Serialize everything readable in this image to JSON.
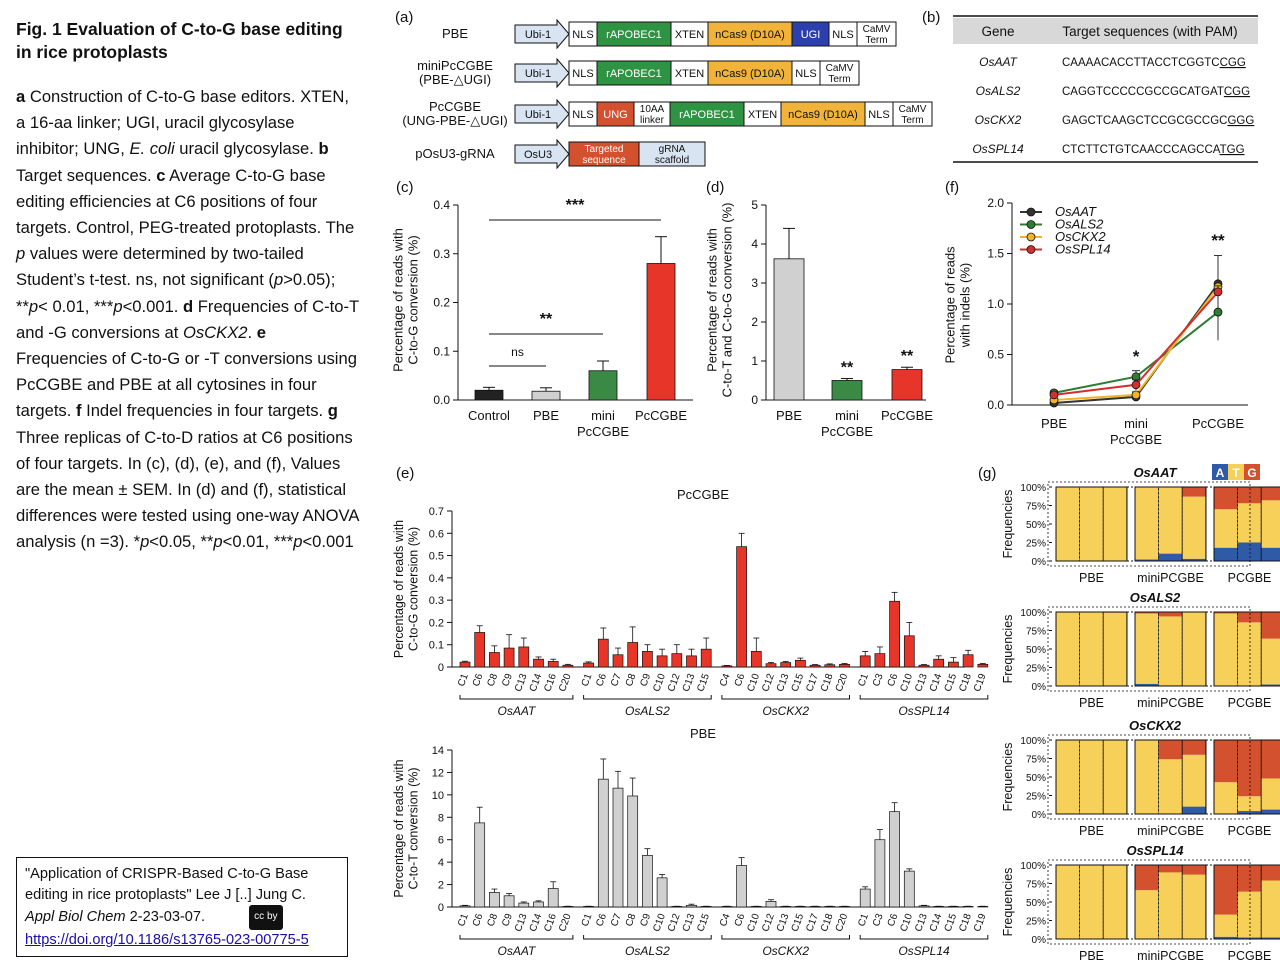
{
  "left_column": {
    "title": "Fig. 1 Evaluation of C-to-G base editing in rice protoplasts",
    "caption_parts": [
      {
        "t": "a",
        "b": true
      },
      {
        "t": " Construction of C-to-G base editors. XTEN, a 16-aa linker; UGI, uracil glycosylase inhibitor; UNG, "
      },
      {
        "t": "E. coli",
        "i": true
      },
      {
        "t": " uracil glycosylase. "
      },
      {
        "t": "b",
        "b": true
      },
      {
        "t": " Target sequences. "
      },
      {
        "t": "c",
        "b": true
      },
      {
        "t": " Average C-to-G base editing efficiencies at C6 positions of four targets. Control, PEG-treated protoplasts. The "
      },
      {
        "t": "p",
        "i": true
      },
      {
        "t": " values were determined by two-tailed Student’s t-test. ns, not significant ("
      },
      {
        "t": "p",
        "i": true
      },
      {
        "t": ">0.05); **"
      },
      {
        "t": "p",
        "i": true
      },
      {
        "t": "< 0.01, ***"
      },
      {
        "t": "p",
        "i": true
      },
      {
        "t": "<0.001. "
      },
      {
        "t": "d",
        "b": true
      },
      {
        "t": " Frequencies of C-to-T and -G conversions at "
      },
      {
        "t": "OsCKX2",
        "i": true
      },
      {
        "t": ". "
      },
      {
        "t": "e",
        "b": true
      },
      {
        "t": " Frequencies of C-to-G or -T conversions using PcCGBE and PBE at all cytosines in four targets. "
      },
      {
        "t": "f",
        "b": true
      },
      {
        "t": " Indel frequencies in four targets. "
      },
      {
        "t": "g",
        "b": true
      },
      {
        "t": " Three replicas of C-to-D ratios at C6 positions of four targets. In (c), (d), (e), and (f), Values are the mean ± SEM. In (d) and (f), statistical differences were tested using one-way ANOVA analysis (n =3). *"
      },
      {
        "t": "p",
        "i": true
      },
      {
        "t": "<0.05, **"
      },
      {
        "t": "p",
        "i": true
      },
      {
        "t": "<0.01, ***"
      },
      {
        "t": "p",
        "i": true
      },
      {
        "t": "<0.001"
      }
    ],
    "citation": {
      "line1": "\"Application of CRISPR-Based C-to-G Base editing in rice protoplasts\" Lee J [..] Jung C.",
      "journal": "Appl Biol Chem",
      "volume": " 2-23-03-07.",
      "link": "https://doi.org/10.1186/s13765-023-00775-5",
      "badge": "cc by"
    }
  },
  "panel_a": {
    "label": "(a)",
    "constructs": [
      {
        "name": [
          "PBE"
        ],
        "parts": [
          [
            "Ubi-1",
            "promoter"
          ],
          [
            "NLS",
            "w"
          ],
          [
            "rAPOBEC1",
            "g"
          ],
          [
            "XTEN",
            "w"
          ],
          [
            "nCas9 (D10A)",
            "o"
          ],
          [
            "UGI",
            "b"
          ],
          [
            "NLS",
            "w"
          ],
          [
            "CaMV|Term",
            "w"
          ]
        ]
      },
      {
        "name": [
          "miniPcCGBE",
          "(PBE-△UGI)"
        ],
        "parts": [
          [
            "Ubi-1",
            "promoter"
          ],
          [
            "NLS",
            "w"
          ],
          [
            "rAPOBEC1",
            "g"
          ],
          [
            "XTEN",
            "w"
          ],
          [
            "nCas9 (D10A)",
            "o"
          ],
          [
            "NLS",
            "w"
          ],
          [
            "CaMV|Term",
            "w"
          ]
        ]
      },
      {
        "name": [
          "PcCGBE",
          "(UNG-PBE-△UGI)"
        ],
        "parts": [
          [
            "Ubi-1",
            "promoter"
          ],
          [
            "NLS",
            "w"
          ],
          [
            "UNG",
            "r"
          ],
          [
            "10AA|linker",
            "w"
          ],
          [
            "rAPOBEC1",
            "g"
          ],
          [
            "XTEN",
            "w"
          ],
          [
            "nCas9 (D10A)",
            "o"
          ],
          [
            "NLS",
            "w"
          ],
          [
            "CaMV|Term",
            "w"
          ]
        ]
      },
      {
        "name": [
          "pOsU3-gRNA"
        ],
        "parts": [
          [
            "OsU3",
            "promoter"
          ],
          [
            "Targeted|sequence",
            "r"
          ],
          [
            "gRNA|scaffold",
            "lb"
          ]
        ]
      }
    ]
  },
  "panel_b": {
    "label": "(b)",
    "header": [
      "Gene",
      "Target sequences (with PAM)"
    ],
    "rows": [
      {
        "gene": "OsAAT",
        "seq": "CAAAACACCTTACCTCGGTC",
        "pam": "CGG"
      },
      {
        "gene": "OsALS2",
        "seq": "CAGGTCCCCCGCCGCATGAT",
        "pam": "CGG"
      },
      {
        "gene": "OsCKX2",
        "seq": "GAGCTCAAGCTCCGCGCCGC",
        "pam": "GGG"
      },
      {
        "gene": "OsSPL14",
        "seq": "CTCTTCTGTCAACCCAGCCA",
        "pam": "TGG"
      }
    ]
  },
  "colors": {
    "red": "#e8352a",
    "green": "#3a8a46",
    "gray": "#d0d0d0",
    "darkgray": "#222222",
    "orange": "#f2b33a",
    "blue": "#2c3fae",
    "yellow": "#f7d05a",
    "orangered": "#d4512f",
    "gbluem": "#2f5aa8"
  },
  "chart_data": [
    {
      "id": "c",
      "type": "bar",
      "label": "(c)",
      "categories": [
        "Control",
        "PBE",
        "mini|PcCGBE",
        "PcCGBE"
      ],
      "values": [
        0.02,
        0.018,
        0.06,
        0.28
      ],
      "errors": [
        0.006,
        0.007,
        0.02,
        0.055
      ],
      "colors": [
        "#222222",
        "#d0d0d0",
        "#3a8a46",
        "#e8352a"
      ],
      "ylabel": [
        "Percentage of reads with",
        "C-to-G conversion (%)"
      ],
      "ylim": [
        0,
        0.4
      ],
      "yticks": [
        "0.0",
        "0.1",
        "0.2",
        "0.3",
        "0.4"
      ],
      "brackets": [
        {
          "from": 0,
          "to": 1,
          "text": "ns"
        },
        {
          "from": 0,
          "to": 2,
          "text": "**"
        },
        {
          "from": 0,
          "to": 3,
          "text": "***"
        }
      ]
    },
    {
      "id": "d",
      "type": "bar",
      "label": "(d)",
      "categories": [
        "PBE",
        "mini|PcCGBE",
        "PcCGBE"
      ],
      "values": [
        3.62,
        0.5,
        0.78
      ],
      "errors": [
        0.78,
        0.05,
        0.06
      ],
      "colors": [
        "#d0d0d0",
        "#3a8a46",
        "#e8352a"
      ],
      "stars": [
        "",
        "**",
        "**"
      ],
      "ylabel": [
        "Percentage  of reads with",
        "C-to-T and C-to-G conversion (%)"
      ],
      "ylim": [
        0,
        5
      ],
      "yticks": [
        "0",
        "1",
        "2",
        "3",
        "4",
        "5"
      ]
    },
    {
      "id": "f",
      "type": "line",
      "label": "(f)",
      "categories": [
        "PBE",
        "mini|PcCGBE",
        "PcCGBE"
      ],
      "ylabel": [
        "Percentage of reads",
        "with indels (%)"
      ],
      "ylim": [
        0,
        2
      ],
      "yticks": [
        "0.0",
        "0.5",
        "1.0",
        "1.5",
        "2.0"
      ],
      "stars": [
        "",
        "*",
        "**"
      ],
      "series": [
        {
          "name": "OsAAT",
          "color": "#333333",
          "values": [
            0.02,
            0.08,
            1.2
          ],
          "errors": [
            0.01,
            0.03,
            0.28
          ]
        },
        {
          "name": "OsALS2",
          "color": "#2e7d32",
          "values": [
            0.12,
            0.28,
            0.92
          ],
          "errors": [
            0.02,
            0.06,
            0.28
          ]
        },
        {
          "name": "OsCKX2",
          "color": "#f0b429",
          "values": [
            0.05,
            0.1,
            1.17
          ],
          "errors": [
            0.01,
            0.03,
            0.05
          ]
        },
        {
          "name": "OsSPL14",
          "color": "#d32f2f",
          "values": [
            0.1,
            0.2,
            1.12
          ],
          "errors": [
            0.02,
            0.05,
            0.06
          ]
        }
      ]
    },
    {
      "id": "e1",
      "type": "bar",
      "label": "(e)",
      "title": "PcCGBE",
      "ylabel": [
        "Percentage of  reads with",
        "C-to-G conversion (%)"
      ],
      "ylim": [
        0,
        0.7
      ],
      "yticks": [
        "0",
        "0.1",
        "0.2",
        "0.3",
        "0.4",
        "0.5",
        "0.6",
        "0.7"
      ],
      "color": "#e8352a",
      "groups": [
        {
          "name": "OsAAT",
          "cats": [
            "C1",
            "C6",
            "C8",
            "C9",
            "C13",
            "C14",
            "C16",
            "C20"
          ],
          "values": [
            0.022,
            0.155,
            0.065,
            0.085,
            0.09,
            0.035,
            0.025,
            0.008
          ],
          "errors": [
            0.004,
            0.03,
            0.03,
            0.06,
            0.04,
            0.01,
            0.01,
            0.004
          ]
        },
        {
          "name": "OsALS2",
          "cats": [
            "C1",
            "C6",
            "C7",
            "C8",
            "C9",
            "C10",
            "C12",
            "C13",
            "C15"
          ],
          "values": [
            0.018,
            0.125,
            0.055,
            0.11,
            0.07,
            0.05,
            0.06,
            0.05,
            0.08
          ],
          "errors": [
            0.005,
            0.05,
            0.03,
            0.07,
            0.03,
            0.03,
            0.04,
            0.03,
            0.05
          ]
        },
        {
          "name": "OsCKX2",
          "cats": [
            "C4",
            "C6",
            "C10",
            "C12",
            "C13",
            "C15",
            "C17",
            "C18",
            "C20"
          ],
          "values": [
            0.005,
            0.54,
            0.07,
            0.015,
            0.02,
            0.03,
            0.008,
            0.01,
            0.012
          ],
          "errors": [
            0.002,
            0.06,
            0.06,
            0.005,
            0.005,
            0.01,
            0.003,
            0.004,
            0.004
          ]
        },
        {
          "name": "OsSPL14",
          "cats": [
            "C1",
            "C3",
            "C6",
            "C10",
            "C13",
            "C14",
            "C15",
            "C18",
            "C19"
          ],
          "values": [
            0.05,
            0.06,
            0.295,
            0.14,
            0.008,
            0.035,
            0.022,
            0.055,
            0.012
          ],
          "errors": [
            0.02,
            0.03,
            0.04,
            0.06,
            0.003,
            0.015,
            0.02,
            0.02,
            0.004
          ]
        }
      ]
    },
    {
      "id": "e2",
      "type": "bar",
      "title": "PBE",
      "ylabel": [
        "Percentage of  reads with",
        "C-to-T conversion (%)"
      ],
      "ylim": [
        0,
        14
      ],
      "yticks": [
        "0",
        "2",
        "4",
        "6",
        "8",
        "10",
        "12",
        "14"
      ],
      "color": "#d0d0d0",
      "groups": [
        {
          "name": "OsAAT",
          "cats": [
            "C1",
            "C6",
            "C8",
            "C9",
            "C13",
            "C14",
            "C16",
            "C20"
          ],
          "values": [
            0.1,
            7.5,
            1.3,
            1.0,
            0.35,
            0.45,
            1.65,
            0.05
          ],
          "errors": [
            0.05,
            1.4,
            0.3,
            0.2,
            0.1,
            0.1,
            0.6,
            0.02
          ]
        },
        {
          "name": "OsALS2",
          "cats": [
            "C1",
            "C6",
            "C7",
            "C8",
            "C9",
            "C10",
            "C12",
            "C13",
            "C15"
          ],
          "values": [
            0.05,
            11.4,
            10.6,
            9.9,
            4.6,
            2.6,
            0.05,
            0.15,
            0.05
          ],
          "errors": [
            0.02,
            1.8,
            1.5,
            1.6,
            0.6,
            0.3,
            0.02,
            0.1,
            0.02
          ]
        },
        {
          "name": "OsCKX2",
          "cats": [
            "C4",
            "C6",
            "C10",
            "C12",
            "C13",
            "C15",
            "C17",
            "C18",
            "C20"
          ],
          "values": [
            0.05,
            3.7,
            0.05,
            0.5,
            0.05,
            0.05,
            0.05,
            0.05,
            0.05
          ],
          "errors": [
            0.02,
            0.7,
            0.02,
            0.15,
            0.02,
            0.02,
            0.02,
            0.02,
            0.02
          ]
        },
        {
          "name": "OsSPL14",
          "cats": [
            "C1",
            "C3",
            "C6",
            "C10",
            "C13",
            "C14",
            "C15",
            "C18",
            "C19"
          ],
          "values": [
            1.6,
            6.0,
            8.5,
            3.2,
            0.1,
            0.05,
            0.05,
            0.05,
            0.05
          ],
          "errors": [
            0.2,
            0.9,
            0.8,
            0.2,
            0.05,
            0.02,
            0.02,
            0.02,
            0.02
          ]
        }
      ]
    },
    {
      "id": "g",
      "type": "stacked_bar",
      "label": "(g)",
      "legend": [
        "A",
        "T",
        "G"
      ],
      "legend_colors": [
        "#2f5aa8",
        "#f7d05a",
        "#d4512f"
      ],
      "yticks": [
        "0%",
        "25%",
        "50%",
        "75%",
        "100%"
      ],
      "ylabel": "Frequencies",
      "groups": [
        "PBE",
        "miniPCGBE",
        "PCGBE"
      ],
      "panels": [
        {
          "title": "OsAAT",
          "reps": [
            [
              [
                0,
                100,
                0
              ],
              [
                0,
                100,
                0
              ],
              [
                0,
                100,
                0
              ]
            ],
            [
              [
                2,
                98,
                0
              ],
              [
                10,
                90,
                0
              ],
              [
                3,
                84,
                13
              ]
            ],
            [
              [
                18,
                52,
                30
              ],
              [
                25,
                53,
                22
              ],
              [
                18,
                64,
                18
              ]
            ]
          ]
        },
        {
          "title": "OsALS2",
          "reps": [
            [
              [
                0,
                100,
                0
              ],
              [
                0,
                100,
                0
              ],
              [
                0,
                99,
                1
              ]
            ],
            [
              [
                3,
                95,
                2
              ],
              [
                1,
                93,
                6
              ],
              [
                0,
                100,
                0
              ]
            ],
            [
              [
                0,
                98,
                2
              ],
              [
                0,
                86,
                14
              ],
              [
                2,
                62,
                36
              ]
            ]
          ]
        },
        {
          "title": "OsCKX2",
          "reps": [
            [
              [
                0,
                100,
                0
              ],
              [
                0,
                100,
                0
              ],
              [
                0,
                100,
                0
              ]
            ],
            [
              [
                0,
                100,
                0
              ],
              [
                0,
                74,
                26
              ],
              [
                10,
                70,
                20
              ]
            ],
            [
              [
                0,
                43,
                57
              ],
              [
                4,
                20,
                76
              ],
              [
                6,
                42,
                52
              ]
            ]
          ]
        },
        {
          "title": "OsSPL14",
          "reps": [
            [
              [
                0,
                100,
                0
              ],
              [
                0,
                100,
                0
              ],
              [
                0,
                100,
                0
              ]
            ],
            [
              [
                0,
                66,
                34
              ],
              [
                0,
                90,
                10
              ],
              [
                0,
                87,
                13
              ]
            ],
            [
              [
                3,
                30,
                67
              ],
              [
                2,
                62,
                36
              ],
              [
                2,
                77,
                21
              ]
            ]
          ]
        }
      ],
      "group_labels": [
        "PBE",
        "miniPCGBE",
        "PCGBE"
      ]
    }
  ]
}
